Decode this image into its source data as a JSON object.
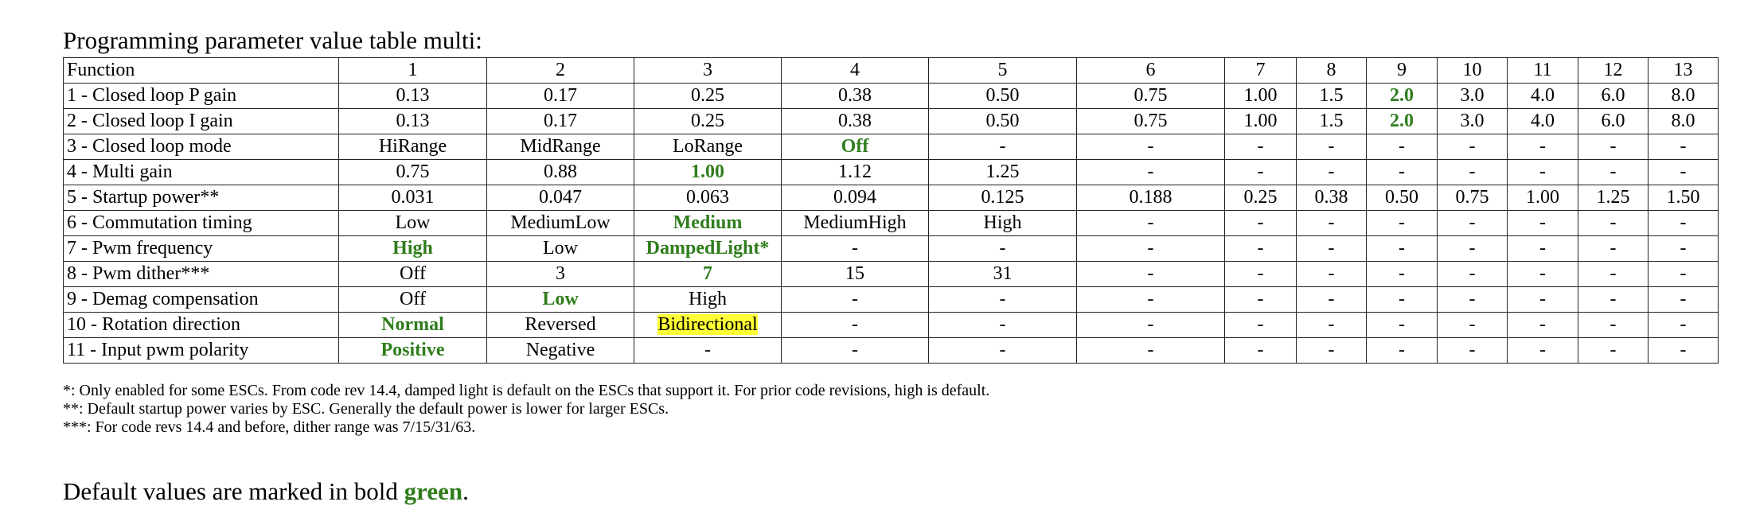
{
  "title": "Programming parameter value table multi:",
  "table": {
    "header": [
      "Function",
      "1",
      "2",
      "3",
      "4",
      "5",
      "6",
      "7",
      "8",
      "9",
      "10",
      "11",
      "12",
      "13"
    ],
    "rows": [
      {
        "function": "1 - Closed loop P gain",
        "cells": [
          "0.13",
          "0.17",
          "0.25",
          "0.38",
          "0.50",
          "0.75",
          "1.00",
          "1.5",
          "2.0",
          "3.0",
          "4.0",
          "6.0",
          "8.0"
        ],
        "default_index": 8
      },
      {
        "function": "2 - Closed loop I gain",
        "cells": [
          "0.13",
          "0.17",
          "0.25",
          "0.38",
          "0.50",
          "0.75",
          "1.00",
          "1.5",
          "2.0",
          "3.0",
          "4.0",
          "6.0",
          "8.0"
        ],
        "default_index": 8
      },
      {
        "function": "3 - Closed loop mode",
        "cells": [
          "HiRange",
          "MidRange",
          "LoRange",
          "Off",
          "-",
          "-",
          "-",
          "-",
          "-",
          "-",
          "-",
          "-",
          "-"
        ],
        "default_index": 3
      },
      {
        "function": "4 - Multi gain",
        "cells": [
          "0.75",
          "0.88",
          "1.00",
          "1.12",
          "1.25",
          "-",
          "-",
          "-",
          "-",
          "-",
          "-",
          "-",
          "-"
        ],
        "default_index": 2
      },
      {
        "function": "5 - Startup power**",
        "cells": [
          "0.031",
          "0.047",
          "0.063",
          "0.094",
          "0.125",
          "0.188",
          "0.25",
          "0.38",
          "0.50",
          "0.75",
          "1.00",
          "1.25",
          "1.50"
        ],
        "default_index": null
      },
      {
        "function": "6 - Commutation timing",
        "cells": [
          "Low",
          "MediumLow",
          "Medium",
          "MediumHigh",
          "High",
          "-",
          "-",
          "-",
          "-",
          "-",
          "-",
          "-",
          "-"
        ],
        "default_index": 2
      },
      {
        "function": "7 - Pwm frequency",
        "cells": [
          "High",
          "Low",
          "DampedLight*",
          "-",
          "-",
          "-",
          "-",
          "-",
          "-",
          "-",
          "-",
          "-",
          "-"
        ],
        "default_index": [
          0,
          2
        ]
      },
      {
        "function": "8 - Pwm dither***",
        "cells": [
          "Off",
          "3",
          "7",
          "15",
          "31",
          "-",
          "-",
          "-",
          "-",
          "-",
          "-",
          "-",
          "-"
        ],
        "default_index": 2
      },
      {
        "function": "9 - Demag compensation",
        "cells": [
          "Off",
          "Low",
          "High",
          "-",
          "-",
          "-",
          "-",
          "-",
          "-",
          "-",
          "-",
          "-",
          "-"
        ],
        "default_index": 1
      },
      {
        "function": "10 - Rotation direction",
        "cells": [
          "Normal",
          "Reversed",
          "Bidirectional",
          "-",
          "-",
          "-",
          "-",
          "-",
          "-",
          "-",
          "-",
          "-",
          "-"
        ],
        "default_index": 0,
        "highlight_index": 2
      },
      {
        "function": "11 - Input pwm polarity",
        "cells": [
          "Positive",
          "Negative",
          "-",
          "-",
          "-",
          "-",
          "-",
          "-",
          "-",
          "-",
          "-",
          "-",
          "-"
        ],
        "default_index": 0
      }
    ]
  },
  "notes": [
    "*: Only enabled for some ESCs. From code rev 14.4, damped light is default on the ESCs that support it. For prior code revisions, high is default.",
    "**: Default startup power varies by ESC. Generally the default power is lower for larger ESCs.",
    "***: For code revs 14.4 and before, dither range was 7/15/31/63."
  ],
  "legend": {
    "prefix": "Default values are marked in bold ",
    "highlight_word": "green",
    "suffix": "."
  },
  "colors": {
    "default_green": "#2f7d1c",
    "highlight_yellow": "#ffff33"
  }
}
